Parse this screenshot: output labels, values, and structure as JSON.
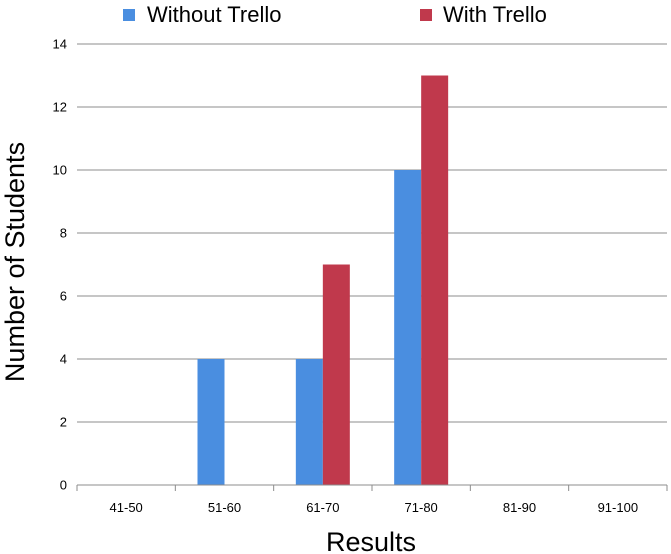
{
  "chart_data": {
    "type": "bar",
    "categories": [
      "41-50",
      "51-60",
      "61-70",
      "71-80",
      "81-90",
      "91-100"
    ],
    "series": [
      {
        "name": "Without Trello",
        "values": [
          0,
          4,
          4,
          10,
          0,
          0
        ],
        "color": "#4a8ee0"
      },
      {
        "name": "With Trello",
        "values": [
          0,
          0,
          7,
          13,
          0,
          0
        ],
        "color": "#c0394c"
      }
    ],
    "title": "",
    "xlabel": "Results",
    "ylabel": "Number of Students",
    "ylim": [
      0,
      14
    ],
    "yticks": [
      0,
      2,
      4,
      6,
      8,
      10,
      12,
      14
    ],
    "grid": true,
    "legend_position": "top"
  }
}
